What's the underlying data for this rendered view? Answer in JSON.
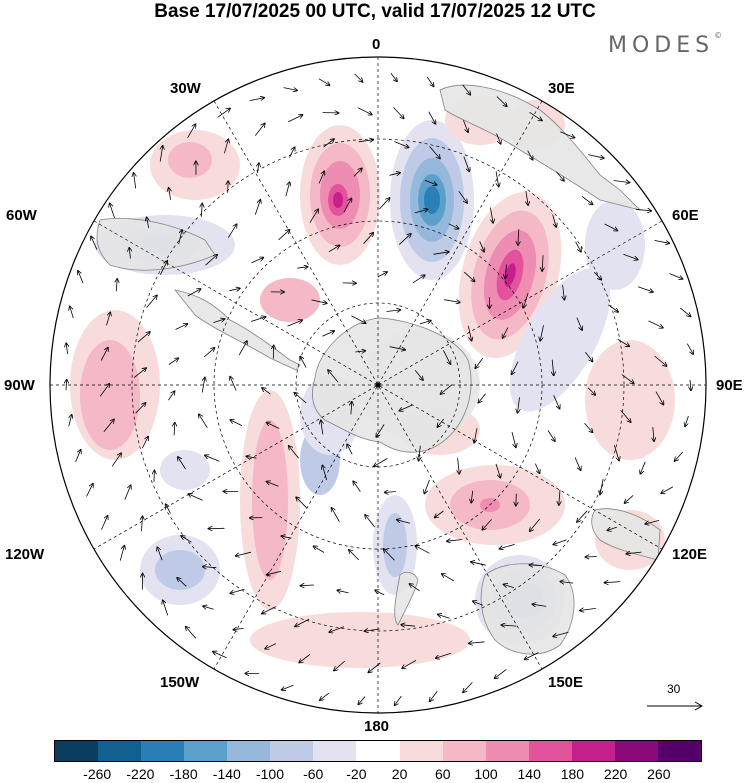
{
  "title": "Base 17/07/2025 00 UTC, valid 17/07/2025 12 UTC",
  "brand": "MODES",
  "brand_mark": "©",
  "longitude_labels": {
    "lon_0": "0",
    "lon_30e": "30E",
    "lon_60e": "60E",
    "lon_90e": "90E",
    "lon_120e": "120E",
    "lon_150e": "150E",
    "lon_180": "180",
    "lon_150w": "150W",
    "lon_120w": "120W",
    "lon_90w": "90W",
    "lon_60w": "60W",
    "lon_30w": "30W"
  },
  "reference_vector": "30",
  "colorbar": {
    "colors": [
      "#0b3d5e",
      "#12608e",
      "#2a7fb6",
      "#5b9fcb",
      "#94b9dc",
      "#bfcbe6",
      "#e2e2f0",
      "#ffffff",
      "#f8dcdc",
      "#f4b8c6",
      "#ee8cb2",
      "#e2529d",
      "#c41f8a",
      "#8b0a7a",
      "#55006a"
    ],
    "tick_labels": [
      "-260",
      "-220",
      "-180",
      "-140",
      "-100",
      "-60",
      "-20",
      "20",
      "60",
      "100",
      "140",
      "180",
      "220",
      "260"
    ]
  },
  "colors": {
    "land": "#e6e6e6",
    "coastline": "#777777",
    "grid": "#000000"
  }
}
